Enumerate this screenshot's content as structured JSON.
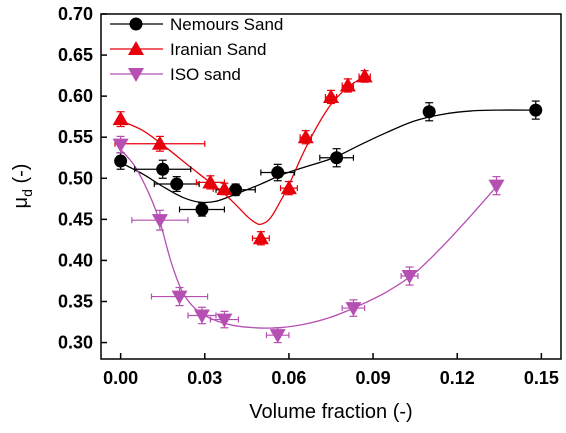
{
  "chart_data": {
    "type": "scatter",
    "xlabel": "Volume fraction (-)",
    "ylabel_main": "μ",
    "ylabel_sub": "d",
    "ylabel_suffix": " (-)",
    "xlim": [
      -0.007,
      0.157
    ],
    "ylim": [
      0.28,
      0.7
    ],
    "x_ticks": [
      0.0,
      0.03,
      0.06,
      0.09,
      0.12,
      0.15
    ],
    "x_tick_labels": [
      "0.00",
      "0.03",
      "0.06",
      "0.09",
      "0.12",
      "0.15"
    ],
    "y_ticks": [
      0.3,
      0.35,
      0.4,
      0.45,
      0.5,
      0.55,
      0.6,
      0.65,
      0.7
    ],
    "y_tick_labels": [
      "0.30",
      "0.35",
      "0.40",
      "0.45",
      "0.50",
      "0.55",
      "0.60",
      "0.65",
      "0.70"
    ],
    "legend_position": "top-left",
    "series": [
      {
        "name": "Nemours Sand",
        "color": "#000000",
        "marker": "circle",
        "points": [
          {
            "x": 0.0,
            "y": 0.521,
            "xerr": 0.0,
            "yerr": 0.01
          },
          {
            "x": 0.015,
            "y": 0.511,
            "xerr": 0.01,
            "yerr": 0.011
          },
          {
            "x": 0.02,
            "y": 0.493,
            "xerr": 0.008,
            "yerr": 0.009
          },
          {
            "x": 0.029,
            "y": 0.462,
            "xerr": 0.008,
            "yerr": 0.008
          },
          {
            "x": 0.041,
            "y": 0.486,
            "xerr": 0.007,
            "yerr": 0.007
          },
          {
            "x": 0.056,
            "y": 0.507,
            "xerr": 0.006,
            "yerr": 0.01
          },
          {
            "x": 0.077,
            "y": 0.525,
            "xerr": 0.006,
            "yerr": 0.011
          },
          {
            "x": 0.11,
            "y": 0.581,
            "xerr": 0.0,
            "yerr": 0.011
          },
          {
            "x": 0.148,
            "y": 0.583,
            "xerr": 0.0,
            "yerr": 0.011
          }
        ]
      },
      {
        "name": "Iranian Sand",
        "color": "#e8000b",
        "marker": "triangle-up",
        "points": [
          {
            "x": 0.0,
            "y": 0.572,
            "xerr": 0.0,
            "yerr": 0.009
          },
          {
            "x": 0.014,
            "y": 0.542,
            "xerr": 0.016,
            "yerr": 0.009
          },
          {
            "x": 0.032,
            "y": 0.495,
            "xerr": 0.005,
            "yerr": 0.008
          },
          {
            "x": 0.037,
            "y": 0.487,
            "xerr": 0.004,
            "yerr": 0.007
          },
          {
            "x": 0.05,
            "y": 0.427,
            "xerr": 0.003,
            "yerr": 0.008
          },
          {
            "x": 0.06,
            "y": 0.488,
            "xerr": 0.003,
            "yerr": 0.008
          },
          {
            "x": 0.066,
            "y": 0.55,
            "xerr": 0.002,
            "yerr": 0.008
          },
          {
            "x": 0.075,
            "y": 0.599,
            "xerr": 0.002,
            "yerr": 0.008
          },
          {
            "x": 0.081,
            "y": 0.613,
            "xerr": 0.002,
            "yerr": 0.008
          },
          {
            "x": 0.087,
            "y": 0.624,
            "xerr": 0.002,
            "yerr": 0.007
          }
        ]
      },
      {
        "name": "ISO sand",
        "color": "#b64fb2",
        "marker": "triangle-down",
        "points": [
          {
            "x": 0.0,
            "y": 0.541,
            "xerr": 0.0,
            "yerr": 0.01
          },
          {
            "x": 0.014,
            "y": 0.449,
            "xerr": 0.01,
            "yerr": 0.012
          },
          {
            "x": 0.021,
            "y": 0.356,
            "xerr": 0.01,
            "yerr": 0.011
          },
          {
            "x": 0.029,
            "y": 0.333,
            "xerr": 0.005,
            "yerr": 0.01
          },
          {
            "x": 0.037,
            "y": 0.328,
            "xerr": 0.005,
            "yerr": 0.01
          },
          {
            "x": 0.056,
            "y": 0.309,
            "xerr": 0.004,
            "yerr": 0.009
          },
          {
            "x": 0.083,
            "y": 0.342,
            "xerr": 0.004,
            "yerr": 0.01
          },
          {
            "x": 0.103,
            "y": 0.381,
            "xerr": 0.003,
            "yerr": 0.011
          },
          {
            "x": 0.134,
            "y": 0.491,
            "xerr": 0.0,
            "yerr": 0.011
          }
        ]
      }
    ],
    "fit_curves": [
      {
        "series": "Nemours Sand",
        "color": "#000000",
        "points": [
          [
            0.0,
            0.519
          ],
          [
            0.008,
            0.505
          ],
          [
            0.015,
            0.49
          ],
          [
            0.022,
            0.477
          ],
          [
            0.028,
            0.471
          ],
          [
            0.034,
            0.472
          ],
          [
            0.042,
            0.482
          ],
          [
            0.05,
            0.493
          ],
          [
            0.058,
            0.505
          ],
          [
            0.066,
            0.514
          ],
          [
            0.076,
            0.525
          ],
          [
            0.085,
            0.54
          ],
          [
            0.095,
            0.556
          ],
          [
            0.105,
            0.57
          ],
          [
            0.115,
            0.578
          ],
          [
            0.125,
            0.582
          ],
          [
            0.135,
            0.583
          ],
          [
            0.148,
            0.583
          ]
        ]
      },
      {
        "series": "Iranian Sand",
        "color": "#e8000b",
        "points": [
          [
            0.0,
            0.57
          ],
          [
            0.008,
            0.558
          ],
          [
            0.016,
            0.538
          ],
          [
            0.024,
            0.516
          ],
          [
            0.03,
            0.5
          ],
          [
            0.036,
            0.484
          ],
          [
            0.041,
            0.468
          ],
          [
            0.045,
            0.454
          ],
          [
            0.048,
            0.446
          ],
          [
            0.05,
            0.444
          ],
          [
            0.053,
            0.45
          ],
          [
            0.056,
            0.466
          ],
          [
            0.06,
            0.492
          ],
          [
            0.065,
            0.53
          ],
          [
            0.07,
            0.563
          ],
          [
            0.075,
            0.59
          ],
          [
            0.08,
            0.608
          ],
          [
            0.084,
            0.618
          ],
          [
            0.087,
            0.624
          ]
        ]
      },
      {
        "series": "ISO sand",
        "color": "#b64fb2",
        "points": [
          [
            0.0,
            0.535
          ],
          [
            0.005,
            0.515
          ],
          [
            0.01,
            0.482
          ],
          [
            0.014,
            0.447
          ],
          [
            0.018,
            0.398
          ],
          [
            0.022,
            0.362
          ],
          [
            0.027,
            0.34
          ],
          [
            0.033,
            0.328
          ],
          [
            0.04,
            0.321
          ],
          [
            0.048,
            0.318
          ],
          [
            0.056,
            0.318
          ],
          [
            0.065,
            0.322
          ],
          [
            0.075,
            0.331
          ],
          [
            0.085,
            0.345
          ],
          [
            0.095,
            0.362
          ],
          [
            0.105,
            0.385
          ],
          [
            0.115,
            0.418
          ],
          [
            0.125,
            0.455
          ],
          [
            0.134,
            0.49
          ]
        ]
      }
    ]
  }
}
